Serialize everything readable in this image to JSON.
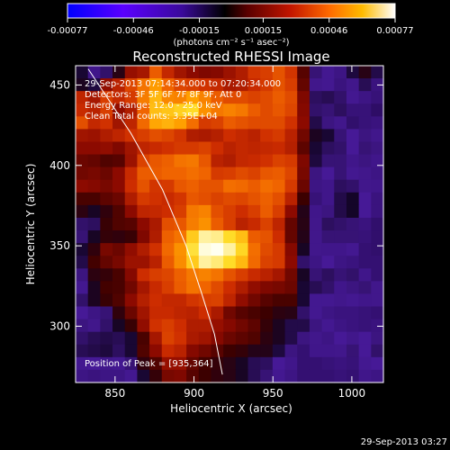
{
  "chart_data": {
    "type": "heatmap",
    "title": "Reconstructed RHESSI Image",
    "xlabel": "Heliocentric X (arcsec)",
    "ylabel": "Heliocentric Y (arcsec)",
    "xlim": [
      825,
      1020
    ],
    "ylim": [
      265,
      462
    ],
    "xticks": [
      850,
      900,
      950,
      1000
    ],
    "yticks": [
      300,
      350,
      400,
      450
    ],
    "grid": false,
    "colorbar": {
      "ticks": [
        "-0.00077",
        "-0.00046",
        "-0.00015",
        "0.00015",
        "0.00046",
        "0.00077"
      ],
      "range": [
        -0.00077,
        0.00077
      ],
      "unit_label": "(photons cm⁻² s⁻¹ asec⁻²)"
    },
    "annotations": {
      "time_range": "29-Sep-2013 07:14:34.000 to 07:20:34.000",
      "detectors": "Detectors: 3F 5F 6F 7F 8F 9F, Att 0",
      "energy": "Energy Range: 12.0 - 25.0 keV",
      "clean": "Clean    Total counts: 3.35E+04",
      "peak": "Position of Peak = [935,364]"
    },
    "peak": {
      "x": 935,
      "y": 364
    },
    "limb_curve": [
      [
        833,
        460
      ],
      [
        860,
        420
      ],
      [
        880,
        385
      ],
      [
        895,
        350
      ],
      [
        905,
        320
      ],
      [
        913,
        295
      ],
      [
        918,
        270
      ]
    ],
    "grid_data": {
      "cols": 25,
      "rows": 25,
      "values": [
        [
          0.19,
          0.08,
          0.14,
          0.25,
          0.44,
          0.47,
          0.66,
          0.53,
          0.46,
          0.42,
          0.4,
          0.41,
          0.45,
          0.49,
          0.57,
          0.59,
          0.64,
          0.57,
          0.34,
          0.13,
          0.09,
          0.07,
          0.18,
          0.25,
          0.17
        ],
        [
          0.22,
          0.18,
          0.43,
          0.51,
          0.61,
          0.71,
          0.79,
          0.68,
          0.61,
          0.59,
          0.56,
          0.53,
          0.48,
          0.49,
          0.54,
          0.58,
          0.64,
          0.59,
          0.36,
          0.11,
          0.09,
          0.06,
          0.11,
          0.16,
          0.06
        ],
        [
          0.52,
          0.47,
          0.59,
          0.53,
          0.58,
          0.73,
          0.84,
          0.75,
          0.74,
          0.8,
          0.74,
          0.66,
          0.62,
          0.62,
          0.6,
          0.62,
          0.66,
          0.62,
          0.4,
          0.15,
          0.16,
          0.14,
          0.09,
          0.07,
          0.05
        ],
        [
          0.54,
          0.51,
          0.59,
          0.43,
          0.49,
          0.68,
          0.85,
          0.86,
          0.88,
          0.9,
          0.77,
          0.72,
          0.74,
          0.72,
          0.66,
          0.62,
          0.65,
          0.61,
          0.41,
          0.14,
          0.13,
          0.15,
          0.05,
          0.05,
          0.02
        ],
        [
          0.63,
          0.53,
          0.56,
          0.46,
          0.52,
          0.69,
          0.81,
          0.83,
          0.8,
          0.7,
          0.58,
          0.6,
          0.66,
          0.64,
          0.62,
          0.62,
          0.62,
          0.56,
          0.42,
          0.17,
          0.12,
          0.11,
          0.03,
          0.05,
          0.06
        ],
        [
          0.46,
          0.45,
          0.49,
          0.52,
          0.56,
          0.59,
          0.63,
          0.61,
          0.57,
          0.49,
          0.48,
          0.5,
          0.55,
          0.53,
          0.51,
          0.56,
          0.58,
          0.51,
          0.38,
          0.22,
          0.19,
          0.13,
          0.1,
          0.12,
          0.11
        ],
        [
          0.42,
          0.42,
          0.43,
          0.4,
          0.46,
          0.52,
          0.54,
          0.56,
          0.58,
          0.58,
          0.6,
          0.55,
          0.51,
          0.53,
          0.52,
          0.53,
          0.54,
          0.5,
          0.35,
          0.19,
          0.15,
          0.14,
          0.1,
          0.13,
          0.12
        ],
        [
          0.37,
          0.36,
          0.33,
          0.34,
          0.45,
          0.6,
          0.65,
          0.67,
          0.71,
          0.72,
          0.65,
          0.51,
          0.49,
          0.53,
          0.54,
          0.56,
          0.6,
          0.58,
          0.4,
          0.18,
          0.13,
          0.13,
          0.08,
          0.12,
          0.08
        ],
        [
          0.38,
          0.39,
          0.37,
          0.42,
          0.54,
          0.66,
          0.66,
          0.68,
          0.68,
          0.7,
          0.68,
          0.58,
          0.59,
          0.62,
          0.6,
          0.65,
          0.66,
          0.61,
          0.39,
          0.12,
          0.1,
          0.13,
          0.09,
          0.11,
          0.07
        ],
        [
          0.42,
          0.41,
          0.39,
          0.42,
          0.55,
          0.64,
          0.57,
          0.58,
          0.65,
          0.67,
          0.64,
          0.64,
          0.7,
          0.69,
          0.66,
          0.7,
          0.68,
          0.58,
          0.37,
          0.07,
          0.08,
          0.15,
          0.14,
          0.11,
          0.08
        ],
        [
          0.32,
          0.32,
          0.35,
          0.37,
          0.49,
          0.58,
          0.56,
          0.54,
          0.57,
          0.65,
          0.63,
          0.6,
          0.62,
          0.61,
          0.64,
          0.67,
          0.63,
          0.51,
          0.3,
          0.05,
          0.08,
          0.17,
          0.2,
          0.1,
          0.06
        ],
        [
          0.26,
          0.21,
          0.27,
          0.33,
          0.42,
          0.52,
          0.53,
          0.55,
          0.59,
          0.72,
          0.74,
          0.63,
          0.59,
          0.55,
          0.59,
          0.66,
          0.59,
          0.42,
          0.24,
          0.08,
          0.12,
          0.17,
          0.2,
          0.1,
          0.06
        ],
        [
          0.14,
          0.15,
          0.29,
          0.33,
          0.34,
          0.42,
          0.48,
          0.63,
          0.65,
          0.73,
          0.77,
          0.66,
          0.59,
          0.51,
          0.54,
          0.6,
          0.52,
          0.36,
          0.25,
          0.11,
          0.15,
          0.14,
          0.13,
          0.06,
          0.03
        ],
        [
          0.13,
          0.21,
          0.28,
          0.27,
          0.29,
          0.4,
          0.49,
          0.67,
          0.71,
          0.87,
          0.96,
          0.95,
          0.9,
          0.85,
          0.66,
          0.64,
          0.55,
          0.36,
          0.24,
          0.11,
          0.13,
          0.13,
          0.13,
          0.05,
          0.03
        ],
        [
          0.19,
          0.27,
          0.39,
          0.37,
          0.43,
          0.49,
          0.56,
          0.69,
          0.77,
          0.91,
          0.99,
          1.0,
          0.96,
          0.89,
          0.7,
          0.62,
          0.58,
          0.41,
          0.21,
          0.11,
          0.08,
          0.08,
          0.09,
          0.04,
          0.03
        ],
        [
          0.17,
          0.31,
          0.36,
          0.39,
          0.45,
          0.45,
          0.51,
          0.66,
          0.76,
          0.87,
          0.96,
          0.94,
          0.9,
          0.84,
          0.69,
          0.6,
          0.58,
          0.42,
          0.14,
          0.07,
          0.1,
          0.07,
          0.06,
          0.04,
          0.04
        ],
        [
          0.12,
          0.26,
          0.28,
          0.32,
          0.41,
          0.55,
          0.59,
          0.61,
          0.67,
          0.72,
          0.74,
          0.71,
          0.64,
          0.59,
          0.54,
          0.51,
          0.47,
          0.38,
          0.21,
          0.13,
          0.15,
          0.13,
          0.14,
          0.08,
          0.04
        ],
        [
          0.09,
          0.22,
          0.31,
          0.32,
          0.38,
          0.47,
          0.54,
          0.59,
          0.66,
          0.71,
          0.68,
          0.62,
          0.55,
          0.49,
          0.43,
          0.4,
          0.39,
          0.37,
          0.19,
          0.16,
          0.14,
          0.08,
          0.12,
          0.13,
          0.11
        ],
        [
          0.14,
          0.22,
          0.29,
          0.33,
          0.42,
          0.5,
          0.55,
          0.53,
          0.53,
          0.57,
          0.59,
          0.6,
          0.52,
          0.43,
          0.38,
          0.34,
          0.32,
          0.32,
          0.19,
          0.09,
          0.09,
          0.11,
          0.09,
          0.08,
          0.11
        ],
        [
          0.1,
          0.07,
          0.13,
          0.27,
          0.37,
          0.46,
          0.54,
          0.54,
          0.52,
          0.51,
          0.55,
          0.48,
          0.38,
          0.34,
          0.32,
          0.3,
          0.26,
          0.25,
          0.14,
          0.09,
          0.07,
          0.06,
          0.06,
          0.05,
          0.04
        ],
        [
          0.12,
          0.11,
          0.14,
          0.21,
          0.29,
          0.43,
          0.56,
          0.59,
          0.55,
          0.49,
          0.49,
          0.44,
          0.41,
          0.38,
          0.35,
          0.28,
          0.22,
          0.17,
          0.17,
          0.12,
          0.09,
          0.07,
          0.06,
          0.05,
          0.06
        ],
        [
          0.14,
          0.16,
          0.17,
          0.16,
          0.19,
          0.32,
          0.47,
          0.6,
          0.56,
          0.48,
          0.46,
          0.41,
          0.37,
          0.35,
          0.33,
          0.26,
          0.22,
          0.17,
          0.12,
          0.11,
          0.07,
          0.1,
          0.11,
          0.1,
          0.12
        ],
        [
          0.16,
          0.17,
          0.18,
          0.15,
          0.19,
          0.33,
          0.42,
          0.54,
          0.51,
          0.41,
          0.38,
          0.34,
          0.3,
          0.28,
          0.24,
          0.24,
          0.18,
          0.12,
          0.04,
          0.08,
          0.08,
          0.11,
          0.13,
          0.1,
          0.14
        ],
        [
          0.09,
          0.1,
          0.11,
          0.09,
          0.13,
          0.27,
          0.33,
          0.44,
          0.44,
          0.36,
          0.31,
          0.28,
          0.25,
          0.21,
          0.16,
          0.15,
          0.1,
          0.08,
          0.04,
          0.04,
          0.05,
          0.06,
          0.05,
          0.09,
          0.1
        ],
        [
          0.07,
          0.06,
          0.07,
          0.07,
          0.09,
          0.19,
          0.28,
          0.39,
          0.4,
          0.34,
          0.3,
          0.27,
          0.25,
          0.21,
          0.16,
          0.13,
          0.09,
          0.07,
          0.04,
          0.04,
          0.04,
          0.05,
          0.04,
          0.08,
          0.07
        ]
      ]
    }
  },
  "footer": {
    "timestamp": "29-Sep-2013 03:27"
  }
}
